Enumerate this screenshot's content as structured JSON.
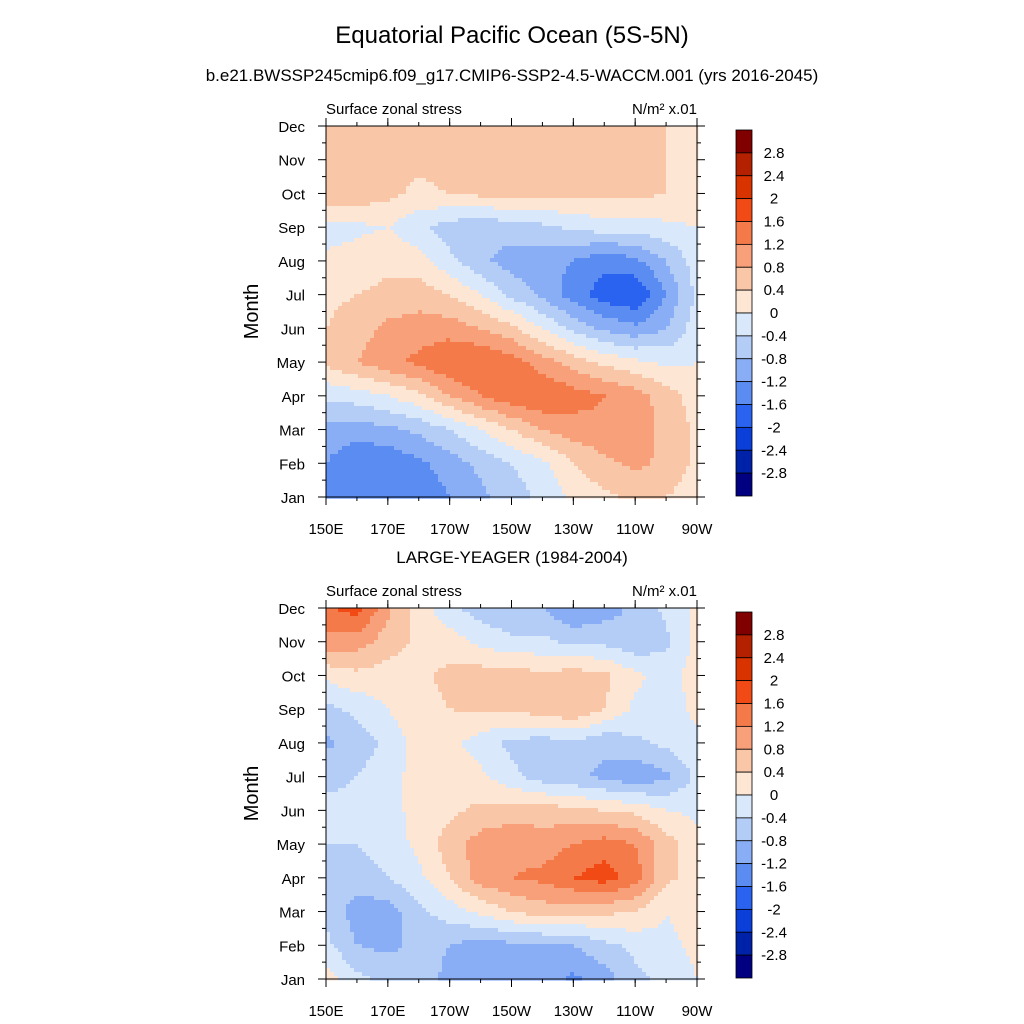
{
  "figure": {
    "title": "Equatorial Pacific Ocean (5S-5N)",
    "subtitle": "b.e21.BWSSP245cmip6.f09_g17.CMIP6-SSP2-4.5-WACCM.001 (yrs 2016-2045)",
    "second_title": "LARGE-YEAGER (1984-2004)"
  },
  "chart_data": [
    {
      "type": "heatmap",
      "panel_left_label": "Surface zonal stress",
      "panel_right_label": "N/m² x.01",
      "ylabel": "Month",
      "xlabel": "",
      "x_ticks": [
        "150E",
        "170E",
        "170W",
        "150W",
        "130W",
        "110W",
        "90W"
      ],
      "y_ticks": [
        "Jan",
        "Feb",
        "Mar",
        "Apr",
        "May",
        "Jun",
        "Jul",
        "Aug",
        "Sep",
        "Oct",
        "Nov",
        "Dec"
      ],
      "colorbar": {
        "labels": [
          "2.8",
          "2.4",
          "2",
          "1.6",
          "1.2",
          "0.8",
          "0.4",
          "0",
          "-0.4",
          "-0.8",
          "-1.2",
          "-1.6",
          "-2",
          "-2.4",
          "-2.8"
        ],
        "colors": [
          "#800000",
          "#b32100",
          "#d93400",
          "#f24a14",
          "#f57a4a",
          "#f7a07a",
          "#fac6a8",
          "#fde6d4",
          "#d9e8fa",
          "#b3cdf7",
          "#8aaef5",
          "#5a8cf2",
          "#2a63f0",
          "#0a3fd9",
          "#0022a8",
          "#000080"
        ]
      },
      "x": [
        150,
        160,
        170,
        180,
        190,
        200,
        210,
        220,
        230,
        240,
        250,
        260,
        270
      ],
      "z": [
        [
          -1.3,
          -1.5,
          -1.6,
          -1.5,
          -1.2,
          -0.9,
          -0.6,
          -0.3,
          0.1,
          0.3,
          0.5,
          0.4,
          0.2
        ],
        [
          -1.2,
          -1.6,
          -1.5,
          -1.3,
          -1.0,
          -0.7,
          -0.4,
          -0.1,
          0.4,
          0.7,
          0.9,
          0.7,
          0.3
        ],
        [
          -0.9,
          -1.0,
          -0.9,
          -0.7,
          -0.4,
          0.0,
          0.4,
          0.8,
          1.0,
          1.1,
          1.0,
          0.7,
          0.3
        ],
        [
          -0.3,
          -0.2,
          0.0,
          0.3,
          0.8,
          1.2,
          1.5,
          1.6,
          1.4,
          1.2,
          1.0,
          0.6,
          0.2
        ],
        [
          0.5,
          0.8,
          1.1,
          1.3,
          1.6,
          1.6,
          1.4,
          1.0,
          0.6,
          0.3,
          0.1,
          -0.1,
          0.0
        ],
        [
          0.4,
          0.6,
          0.9,
          1.0,
          1.0,
          0.8,
          0.5,
          0.0,
          -0.5,
          -0.9,
          -1.1,
          -0.8,
          -0.2
        ],
        [
          0.3,
          0.4,
          0.5,
          0.6,
          0.4,
          0.0,
          -0.5,
          -0.9,
          -1.4,
          -1.8,
          -2.0,
          -1.2,
          -0.3
        ],
        [
          0.1,
          0.2,
          0.3,
          0.2,
          -0.3,
          -0.7,
          -1.0,
          -1.1,
          -1.2,
          -1.5,
          -1.3,
          -0.8,
          -0.2
        ],
        [
          -0.2,
          -0.1,
          0.0,
          -0.3,
          -0.6,
          -0.7,
          -0.6,
          -0.5,
          -0.3,
          -0.2,
          -0.2,
          -0.1,
          0.0
        ],
        [
          0.8,
          0.7,
          0.5,
          0.3,
          0.4,
          0.5,
          0.5,
          0.5,
          0.5,
          0.5,
          0.5,
          0.4,
          0.3
        ],
        [
          0.5,
          0.6,
          0.6,
          0.5,
          0.6,
          0.7,
          0.6,
          0.5,
          0.5,
          0.6,
          0.5,
          0.4,
          0.3
        ],
        [
          0.4,
          0.5,
          0.5,
          0.4,
          0.4,
          0.5,
          0.5,
          0.4,
          0.4,
          0.5,
          0.5,
          0.4,
          0.3
        ]
      ]
    },
    {
      "type": "heatmap",
      "panel_left_label": "Surface zonal stress",
      "panel_right_label": "N/m² x.01",
      "ylabel": "Month",
      "xlabel": "",
      "x_ticks": [
        "150E",
        "170E",
        "170W",
        "150W",
        "130W",
        "110W",
        "90W"
      ],
      "y_ticks": [
        "Jan",
        "Feb",
        "Mar",
        "Apr",
        "May",
        "Jun",
        "Jul",
        "Aug",
        "Sep",
        "Oct",
        "Nov",
        "Dec"
      ],
      "colorbar": {
        "labels": [
          "2.8",
          "2.4",
          "2",
          "1.6",
          "1.2",
          "0.8",
          "0.4",
          "0",
          "-0.4",
          "-0.8",
          "-1.2",
          "-1.6",
          "-2",
          "-2.4",
          "-2.8"
        ],
        "colors": [
          "#800000",
          "#b32100",
          "#d93400",
          "#f24a14",
          "#f57a4a",
          "#f7a07a",
          "#fac6a8",
          "#fde6d4",
          "#d9e8fa",
          "#b3cdf7",
          "#8aaef5",
          "#5a8cf2",
          "#2a63f0",
          "#0a3fd9",
          "#0022a8",
          "#000080"
        ]
      },
      "x": [
        150,
        160,
        170,
        180,
        190,
        200,
        210,
        220,
        230,
        240,
        250,
        260,
        270
      ],
      "z": [
        [
          0.2,
          -0.3,
          -0.5,
          -0.6,
          -0.9,
          -1.2,
          -1.0,
          -1.0,
          -1.3,
          -1.0,
          -0.5,
          -0.3,
          0.0
        ],
        [
          -0.3,
          -0.8,
          -0.9,
          -0.7,
          -0.8,
          -1.0,
          -0.9,
          -0.9,
          -0.8,
          -0.5,
          -0.3,
          -0.1,
          0.1
        ],
        [
          -0.5,
          -1.0,
          -1.0,
          -0.5,
          -0.2,
          0.1,
          0.4,
          0.6,
          0.5,
          0.5,
          0.4,
          0.0,
          0.2
        ],
        [
          -0.4,
          -0.6,
          -0.4,
          -0.1,
          0.4,
          1.0,
          1.2,
          1.3,
          1.6,
          1.8,
          1.4,
          0.5,
          0.2
        ],
        [
          -0.4,
          -0.4,
          -0.2,
          0.1,
          0.6,
          1.0,
          1.1,
          1.0,
          1.2,
          1.4,
          1.2,
          0.6,
          0.1
        ],
        [
          -0.3,
          -0.3,
          -0.1,
          0.1,
          0.3,
          0.5,
          0.6,
          0.6,
          0.5,
          0.4,
          0.3,
          0.0,
          -0.1
        ],
        [
          -0.5,
          -0.4,
          -0.2,
          0.2,
          0.3,
          0.1,
          -0.3,
          -0.6,
          -0.7,
          -0.9,
          -1.1,
          -0.9,
          -0.3
        ],
        [
          -0.9,
          -0.6,
          -0.3,
          0.2,
          0.1,
          -0.2,
          -0.5,
          -0.6,
          -0.5,
          -0.7,
          -0.5,
          -0.3,
          -0.1
        ],
        [
          -0.5,
          -0.3,
          0.0,
          0.3,
          0.4,
          0.5,
          0.5,
          0.6,
          0.8,
          0.4,
          -0.1,
          -0.2,
          0.1
        ],
        [
          0.1,
          0.3,
          0.2,
          0.3,
          0.5,
          0.6,
          0.6,
          0.5,
          0.6,
          0.5,
          0.1,
          -0.2,
          0.2
        ],
        [
          1.1,
          1.0,
          0.6,
          0.3,
          0.2,
          -0.1,
          -0.3,
          -0.3,
          -0.5,
          -0.5,
          -0.7,
          -0.5,
          0.1
        ],
        [
          1.5,
          1.8,
          0.9,
          0.2,
          -0.3,
          -0.6,
          -0.8,
          -0.8,
          -1.2,
          -1.0,
          -0.7,
          -0.3,
          0.1
        ]
      ]
    }
  ]
}
